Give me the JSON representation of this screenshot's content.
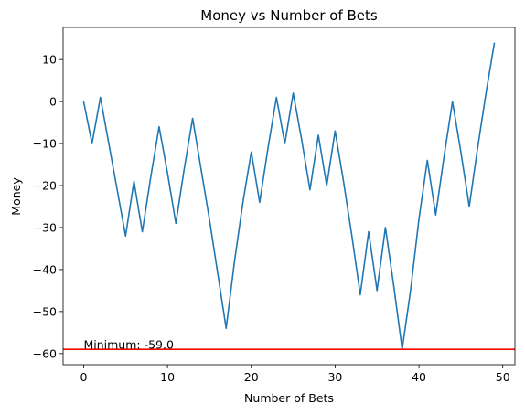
{
  "chart_data": {
    "type": "line",
    "title": "Money vs Number of Bets",
    "xlabel": "Number of Bets",
    "ylabel": "Money",
    "xlim": [
      -2.45,
      51.45
    ],
    "ylim": [
      -62.65,
      17.65
    ],
    "xticks": [
      0,
      10,
      20,
      30,
      40,
      50
    ],
    "yticks": [
      10,
      0,
      -10,
      -20,
      -30,
      -40,
      -50,
      -60
    ],
    "grid": false,
    "series": [
      {
        "color": "#1f77b4",
        "x": [
          0,
          1,
          2,
          3,
          4,
          5,
          6,
          7,
          8,
          9,
          10,
          11,
          12,
          13,
          14,
          15,
          16,
          17,
          18,
          19,
          20,
          21,
          22,
          23,
          24,
          25,
          26,
          27,
          28,
          29,
          30,
          31,
          32,
          33,
          34,
          35,
          36,
          37,
          38,
          39,
          40,
          41,
          42,
          43,
          44,
          45,
          46,
          47,
          48,
          49
        ],
        "y": [
          0,
          -10,
          1,
          -10,
          -21,
          -32,
          -19,
          -31,
          -18,
          -6,
          -17,
          -29,
          -16,
          -4,
          -16,
          -28,
          -41,
          -54,
          -38,
          -24,
          -12,
          -24,
          -11,
          1,
          -10,
          2,
          -9,
          -21,
          -8,
          -20,
          -7,
          -19,
          -32,
          -46,
          -31,
          -45,
          -30,
          -44,
          -59,
          -45,
          -28,
          -14,
          -27,
          -13,
          0,
          -12,
          -25,
          -11,
          2,
          14
        ]
      }
    ],
    "hline": {
      "y": -59.0,
      "color": "#ff0000"
    },
    "annotation": {
      "text": "Minimum: -59.0",
      "x": 0,
      "y": -59.0
    }
  }
}
